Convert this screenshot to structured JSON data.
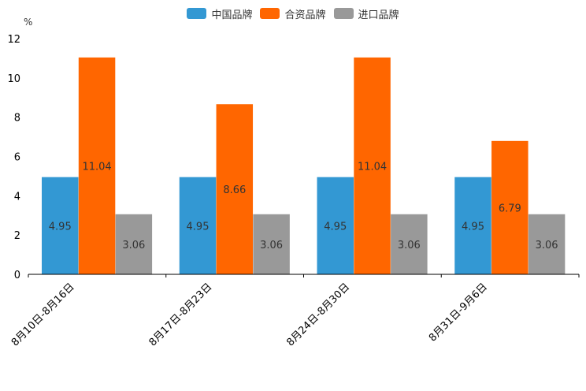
{
  "chart_data": {
    "type": "bar",
    "categories": [
      "8月10日-8月16日",
      "8月17日-8月23日",
      "8月24日-8月30日",
      "8月31日-9月6日"
    ],
    "series": [
      {
        "name": "中国品牌",
        "values": [
          4.95,
          4.95,
          4.95,
          4.95
        ],
        "color": "#3398d3"
      },
      {
        "name": "合资品牌",
        "values": [
          11.04,
          8.66,
          11.04,
          6.79
        ],
        "color": "#ff6600"
      },
      {
        "name": "进口品牌",
        "values": [
          3.06,
          3.06,
          3.06,
          3.06
        ],
        "color": "#999999"
      }
    ],
    "ylabel": "%",
    "ylim": [
      0,
      12
    ],
    "yticks": [
      0,
      2,
      4,
      6,
      8,
      10,
      12
    ],
    "legend_position": "top-center",
    "grid": false
  }
}
